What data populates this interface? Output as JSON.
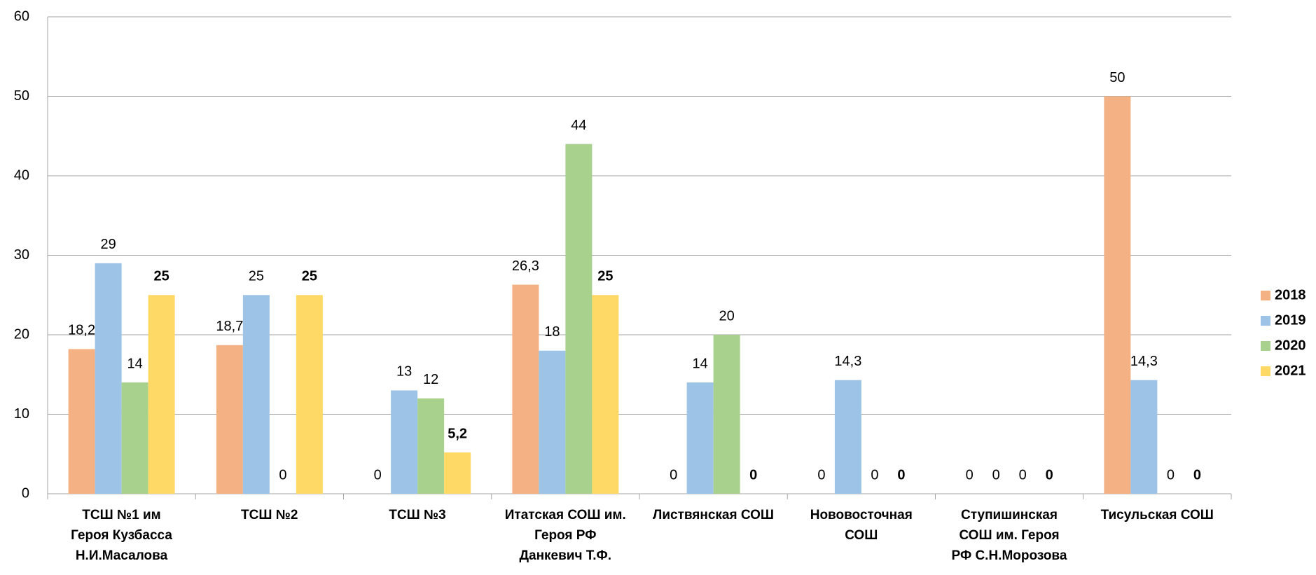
{
  "chart_data": {
    "type": "bar",
    "categories": [
      "ТСШ №1 им\nГероя Кузбасса\nН.И.Масалова",
      "ТСШ №2",
      "ТСШ №3",
      "Итатская СОШ им.\nГероя РФ\nДанкевич Т.Ф.",
      "Листвянская СОШ",
      "Нововосточная\nСОШ",
      "Ступишинская\nСОШ им. Героя\nРФ С.Н.Морозова",
      "Тисульская СОШ"
    ],
    "series": [
      {
        "name": "2018",
        "color": "#f4b183",
        "values": [
          18.2,
          18.7,
          0,
          26.3,
          0,
          0,
          0,
          50
        ],
        "value_labels": [
          "18,2",
          "18,7",
          "0",
          "26,3",
          "0",
          "0",
          "0",
          "50"
        ]
      },
      {
        "name": "2019",
        "color": "#9dc3e6",
        "values": [
          29,
          25,
          13,
          18,
          14,
          14.3,
          0,
          14.3
        ],
        "value_labels": [
          "29",
          "25",
          "13",
          "18",
          "14",
          "14,3",
          "0",
          "14,3"
        ]
      },
      {
        "name": "2020",
        "color": "#a9d18e",
        "values": [
          14,
          0,
          12,
          44,
          20,
          0,
          0,
          0
        ],
        "value_labels": [
          "14",
          "0",
          "12",
          "44",
          "20",
          "0",
          "0",
          "0"
        ]
      },
      {
        "name": "2021",
        "color": "#ffd966",
        "values": [
          25,
          25,
          5.2,
          25,
          0,
          0,
          0,
          0
        ],
        "value_labels": [
          "25",
          "25",
          "5,2",
          "25",
          "0",
          "0",
          "0",
          "0"
        ],
        "label_color": "#1f3864"
      }
    ],
    "ylim": [
      0,
      60
    ],
    "yticks": [
      0,
      10,
      20,
      30,
      40,
      50,
      60
    ],
    "grid": true,
    "legend": "right"
  }
}
